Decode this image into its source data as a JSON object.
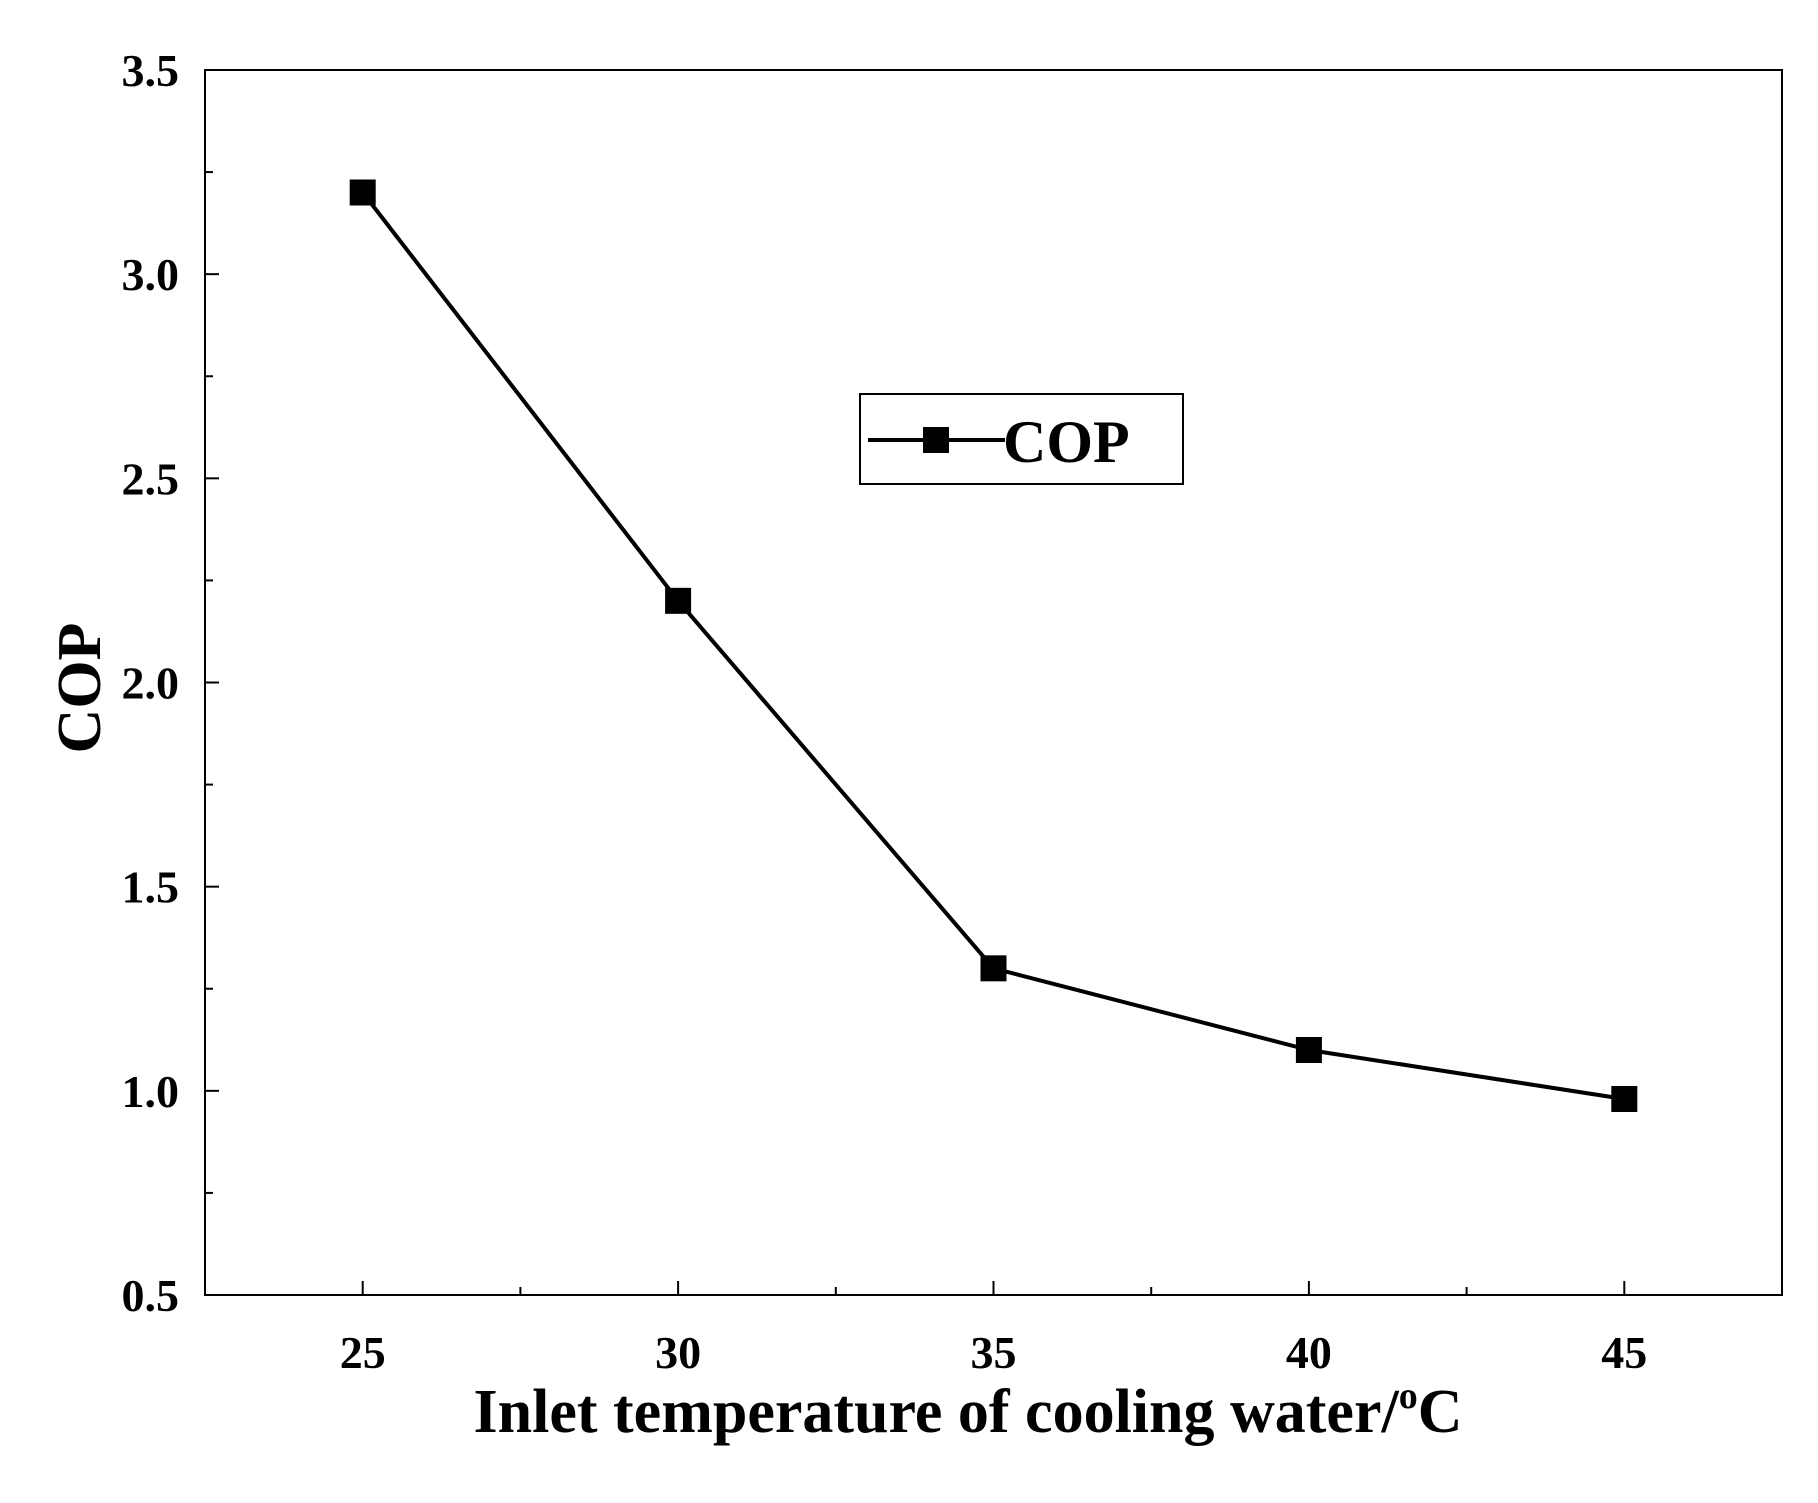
{
  "chart_data": {
    "type": "line",
    "title": "",
    "xlabel": "Inlet temperature of cooling water/",
    "xlabel_sup": "o",
    "xlabel_unit": "C",
    "ylabel": "COP",
    "x": [
      25,
      30,
      35,
      40,
      45
    ],
    "series": [
      {
        "name": "COP",
        "marker": "square",
        "color": "#000000",
        "values": [
          3.2,
          2.2,
          1.3,
          1.1,
          0.98
        ]
      }
    ],
    "xlim": [
      22.5,
      47.5
    ],
    "ylim": [
      0.5,
      3.5
    ],
    "xticks": [
      25,
      30,
      35,
      40,
      45
    ],
    "xtick_labels": [
      "25",
      "30",
      "35",
      "40",
      "45"
    ],
    "xminor_ticks": [
      27.5,
      32.5,
      37.5,
      42.5
    ],
    "yticks": [
      0.5,
      1.0,
      1.5,
      2.0,
      2.5,
      3.0,
      3.5
    ],
    "ytick_labels": [
      "0.5",
      "1.0",
      "1.5",
      "2.0",
      "2.5",
      "3.0",
      "3.5"
    ],
    "yminor_ticks": [
      0.75,
      1.25,
      1.75,
      2.25,
      2.75,
      3.25
    ],
    "grid": false,
    "legend": {
      "position": "upper-center",
      "entries": [
        "COP"
      ]
    }
  }
}
